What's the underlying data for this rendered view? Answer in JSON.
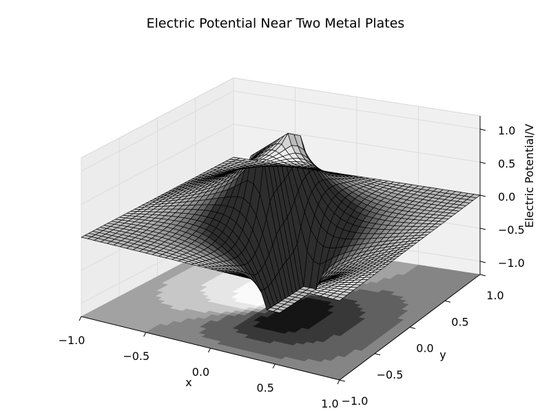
{
  "chart_data": {
    "type": "surface3d",
    "title": "Electric Potential  Near Two Metal Plates",
    "xlabel": "x",
    "ylabel": "y",
    "zlabel": "Electric Potential/V",
    "xlim": [
      -1.0,
      1.0
    ],
    "ylim": [
      -1.0,
      1.0
    ],
    "zlim": [
      -1.2,
      1.2
    ],
    "x_ticks": [
      -1.0,
      -0.5,
      0.0,
      0.5,
      1.0
    ],
    "x_tick_labels": [
      "−1.0",
      "−0.5",
      "0.0",
      "0.5",
      "1.0"
    ],
    "y_ticks": [
      -1.0,
      -0.5,
      0.0,
      0.5,
      1.0
    ],
    "y_tick_labels": [
      "−1.0",
      "−0.5",
      "0.0",
      "0.5",
      "1.0"
    ],
    "z_ticks": [
      -1.0,
      -0.5,
      0.0,
      0.5,
      1.0
    ],
    "z_tick_labels": [
      "−1.0",
      "−0.5",
      "0.0",
      "0.5",
      "1.0"
    ],
    "grid": true,
    "surface": {
      "grid_size": 41,
      "x_range": [
        -1.0,
        1.0
      ],
      "y_range": [
        -1.0,
        1.0
      ],
      "plates": [
        {
          "x_range": [
            -0.2,
            -0.1
          ],
          "y_range": [
            -0.1,
            0.4
          ],
          "potential": 1.0
        },
        {
          "x_range": [
            0.1,
            0.2
          ],
          "y_range": [
            -0.4,
            0.1
          ],
          "potential": -1.0
        }
      ],
      "facecolor": "grayscale",
      "edgecolor": "#000000"
    },
    "contour_projection": {
      "plane": "z=-1.2",
      "levels": [
        -0.6,
        -0.3,
        -0.08,
        0.0,
        0.08,
        0.3,
        0.6
      ],
      "colormap": "gray"
    }
  }
}
